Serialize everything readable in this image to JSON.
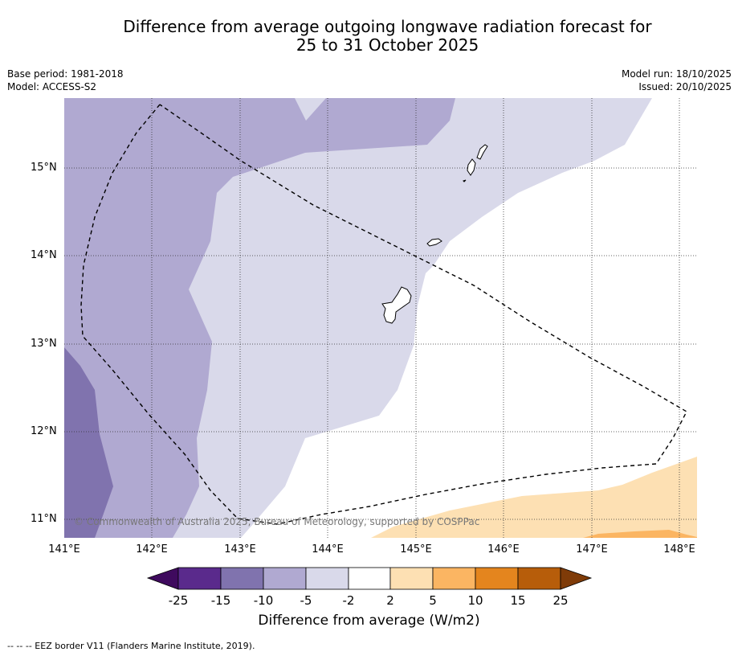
{
  "title": {
    "line1": "Difference from average outgoing longwave radiation forecast for",
    "line2": "25 to 31 October 2025"
  },
  "meta_left": {
    "base_period": "Base period: 1981-2018",
    "model": "Model: ACCESS-S2"
  },
  "meta_right": {
    "model_run": "Model run: 18/10/2025",
    "issued": "Issued: 20/10/2025"
  },
  "map": {
    "lat_labels": [
      "15°N",
      "14°N",
      "13°N",
      "12°N",
      "11°N"
    ],
    "lon_labels": [
      "141°E",
      "142°E",
      "143°E",
      "144°E",
      "145°E",
      "146°E",
      "147°E",
      "148°E"
    ],
    "copyright": "© Commonwealth of Australia 2025, Bureau of Meteorology, supported by COSPPac"
  },
  "colorbar": {
    "labels": [
      "-25",
      "-15",
      "-10",
      "-5",
      "-2",
      "2",
      "5",
      "10",
      "15",
      "25"
    ],
    "colors": [
      "#3f0a5e",
      "#5a2a8c",
      "#8073ae",
      "#b0a9d1",
      "#d9d9ea",
      "#ffffff",
      "#fde0b3",
      "#fbb562",
      "#e4851e",
      "#b75d0a",
      "#7f3b08"
    ],
    "title": "Difference from average (W/m2)"
  },
  "footnote": "--  --  -- EEZ border V11 (Flanders Marine Institute, 2019)."
}
